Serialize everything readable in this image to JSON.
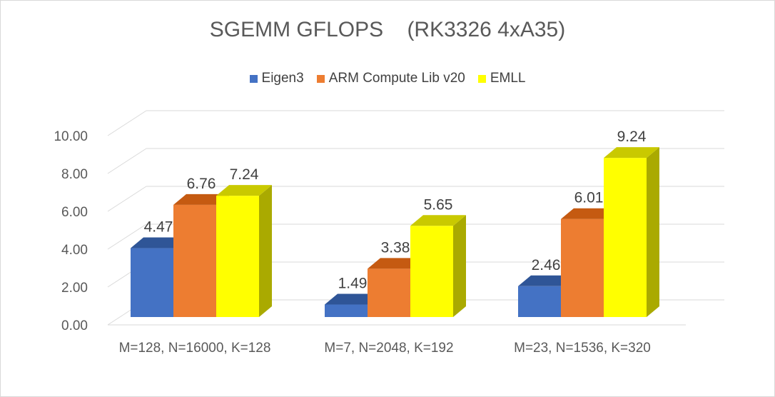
{
  "chart_data": {
    "type": "bar",
    "title": "SGEMM GFLOPS    (RK3326 4xA35)",
    "xlabel": "",
    "ylabel": "",
    "ylim": [
      0,
      10
    ],
    "yticks": [
      "0.00",
      "2.00",
      "4.00",
      "6.00",
      "8.00",
      "10.00"
    ],
    "categories": [
      "M=128, N=16000, K=128",
      "M=7, N=2048, K=192",
      "M=23, N=1536, K=320"
    ],
    "series": [
      {
        "name": "Eigen3",
        "values": [
          4.47,
          1.49,
          2.46
        ],
        "labels": [
          "4.47",
          "1.49",
          "2.46"
        ],
        "color": "#4472C4",
        "top": "#2F5597",
        "side": "#2F5597"
      },
      {
        "name": "ARM Compute Lib v20",
        "values": [
          6.76,
          3.38,
          6.01
        ],
        "labels": [
          "6.76",
          "3.38",
          "6.01"
        ],
        "color": "#ED7D31",
        "top": "#C55A11",
        "side": "#C55A11"
      },
      {
        "name": "EMLL",
        "values": [
          7.24,
          5.65,
          9.24
        ],
        "labels": [
          "7.24",
          "5.65",
          "9.24"
        ],
        "color": "#FFFF00",
        "top": "#C9C900",
        "side": "#AAAA00"
      }
    ],
    "legend_position": "top",
    "grid": true,
    "style": "3d-clustered-column"
  }
}
